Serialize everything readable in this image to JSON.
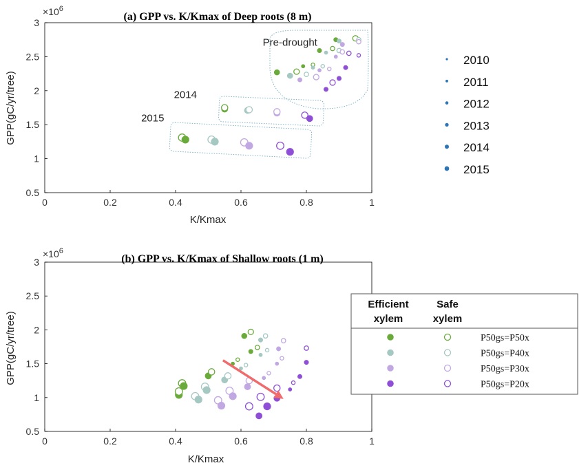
{
  "chart_data": [
    {
      "type": "scatter",
      "panel": "a",
      "title": "(a) GPP vs. K/Kmax of Deep roots (8 m)",
      "xlabel": "K/Kmax",
      "ylabel": "GPP(gC/yr/tree)",
      "exponent": "×10",
      "exponent_power": "6",
      "xlim": [
        0,
        1
      ],
      "ylim": [
        0.5,
        3
      ],
      "xticks": [
        0,
        0.2,
        0.4,
        0.6,
        0.8,
        1
      ],
      "xtick_labels": [
        "0",
        "0.2",
        "0.4",
        "0.6",
        "0.8",
        "1"
      ],
      "yticks": [
        0.5,
        1,
        1.5,
        2,
        2.5,
        3
      ],
      "ytick_labels": [
        "0.5",
        "1",
        "1.5",
        "2",
        "2.5",
        "3"
      ],
      "annotations": [
        {
          "text": "Pre-drought",
          "x": 0.75,
          "y": 2.66
        },
        {
          "text": "2014",
          "x": 0.43,
          "y": 1.89
        },
        {
          "text": "2015",
          "x": 0.33,
          "y": 1.55
        }
      ],
      "points": [
        {
          "x": 0.71,
          "y": 2.27,
          "c": "#6aaa3a",
          "f": true,
          "s": 3
        },
        {
          "x": 0.77,
          "y": 2.28,
          "c": "#6aaa3a",
          "f": false,
          "s": 3
        },
        {
          "x": 0.79,
          "y": 2.36,
          "c": "#6aaa3a",
          "f": true,
          "s": 1
        },
        {
          "x": 0.82,
          "y": 2.38,
          "c": "#6aaa3a",
          "f": false,
          "s": 1
        },
        {
          "x": 0.84,
          "y": 2.59,
          "c": "#6aaa3a",
          "f": true,
          "s": 2
        },
        {
          "x": 0.88,
          "y": 2.62,
          "c": "#6aaa3a",
          "f": false,
          "s": 2
        },
        {
          "x": 0.89,
          "y": 2.75,
          "c": "#6aaa3a",
          "f": true,
          "s": 2
        },
        {
          "x": 0.95,
          "y": 2.77,
          "c": "#6aaa3a",
          "f": false,
          "s": 3
        },
        {
          "x": 0.75,
          "y": 2.22,
          "c": "#a5c8c3",
          "f": true,
          "s": 3
        },
        {
          "x": 0.8,
          "y": 2.24,
          "c": "#a5c8c3",
          "f": false,
          "s": 2
        },
        {
          "x": 0.82,
          "y": 2.34,
          "c": "#a5c8c3",
          "f": true,
          "s": 1
        },
        {
          "x": 0.85,
          "y": 2.36,
          "c": "#a5c8c3",
          "f": false,
          "s": 1
        },
        {
          "x": 0.86,
          "y": 2.56,
          "c": "#a5c8c3",
          "f": true,
          "s": 1
        },
        {
          "x": 0.9,
          "y": 2.59,
          "c": "#a5c8c3",
          "f": false,
          "s": 2
        },
        {
          "x": 0.9,
          "y": 2.73,
          "c": "#a5c8c3",
          "f": true,
          "s": 2
        },
        {
          "x": 0.96,
          "y": 2.75,
          "c": "#a5c8c3",
          "f": false,
          "s": 2
        },
        {
          "x": 0.78,
          "y": 2.16,
          "c": "#c2a8e2",
          "f": true,
          "s": 2
        },
        {
          "x": 0.83,
          "y": 2.2,
          "c": "#c2a8e2",
          "f": false,
          "s": 3
        },
        {
          "x": 0.84,
          "y": 2.3,
          "c": "#c2a8e2",
          "f": true,
          "s": 1
        },
        {
          "x": 0.87,
          "y": 2.32,
          "c": "#c2a8e2",
          "f": false,
          "s": 1
        },
        {
          "x": 0.89,
          "y": 2.5,
          "c": "#c2a8e2",
          "f": true,
          "s": 1
        },
        {
          "x": 0.91,
          "y": 2.57,
          "c": "#c2a8e2",
          "f": false,
          "s": 2
        },
        {
          "x": 0.91,
          "y": 2.68,
          "c": "#c2a8e2",
          "f": true,
          "s": 2
        },
        {
          "x": 0.96,
          "y": 2.72,
          "c": "#c2a8e2",
          "f": false,
          "s": 2
        },
        {
          "x": 0.86,
          "y": 2.02,
          "c": "#8e4fd6",
          "f": true,
          "s": 2
        },
        {
          "x": 0.88,
          "y": 2.12,
          "c": "#8e4fd6",
          "f": false,
          "s": 3
        },
        {
          "x": 0.9,
          "y": 2.18,
          "c": "#8e4fd6",
          "f": true,
          "s": 2
        },
        {
          "x": 0.92,
          "y": 2.34,
          "c": "#8e4fd6",
          "f": true,
          "s": 2
        },
        {
          "x": 0.93,
          "y": 2.55,
          "c": "#8e4fd6",
          "f": false,
          "s": 2
        },
        {
          "x": 0.96,
          "y": 2.52,
          "c": "#8e4fd6",
          "f": false,
          "s": 1
        },
        {
          "x": 0.55,
          "y": 1.73,
          "c": "#6aaa3a",
          "f": true,
          "s": 4
        },
        {
          "x": 0.55,
          "y": 1.75,
          "c": "#6aaa3a",
          "f": false,
          "s": 4
        },
        {
          "x": 0.62,
          "y": 1.71,
          "c": "#a5c8c3",
          "f": true,
          "s": 4
        },
        {
          "x": 0.625,
          "y": 1.72,
          "c": "#a5c8c3",
          "f": false,
          "s": 4
        },
        {
          "x": 0.71,
          "y": 1.67,
          "c": "#c2a8e2",
          "f": true,
          "s": 4
        },
        {
          "x": 0.71,
          "y": 1.69,
          "c": "#c2a8e2",
          "f": false,
          "s": 4
        },
        {
          "x": 0.795,
          "y": 1.64,
          "c": "#8e4fd6",
          "f": false,
          "s": 4
        },
        {
          "x": 0.81,
          "y": 1.59,
          "c": "#8e4fd6",
          "f": true,
          "s": 4
        },
        {
          "x": 0.42,
          "y": 1.31,
          "c": "#6aaa3a",
          "f": false,
          "s": 5
        },
        {
          "x": 0.43,
          "y": 1.28,
          "c": "#6aaa3a",
          "f": true,
          "s": 5
        },
        {
          "x": 0.51,
          "y": 1.28,
          "c": "#a5c8c3",
          "f": false,
          "s": 5
        },
        {
          "x": 0.52,
          "y": 1.25,
          "c": "#a5c8c3",
          "f": true,
          "s": 5
        },
        {
          "x": 0.61,
          "y": 1.24,
          "c": "#c2a8e2",
          "f": false,
          "s": 5
        },
        {
          "x": 0.625,
          "y": 1.19,
          "c": "#c2a8e2",
          "f": true,
          "s": 5
        },
        {
          "x": 0.72,
          "y": 1.19,
          "c": "#8e4fd6",
          "f": false,
          "s": 5
        },
        {
          "x": 0.75,
          "y": 1.1,
          "c": "#8e4fd6",
          "f": true,
          "s": 5
        }
      ]
    },
    {
      "type": "scatter",
      "panel": "b",
      "title": "(b) GPP vs. K/Kmax of Shallow roots (1 m)",
      "xlabel": "K/Kmax",
      "ylabel": "GPP(gC/yr/tree)",
      "exponent": "×10",
      "exponent_power": "6",
      "xlim": [
        0,
        1
      ],
      "ylim": [
        0.5,
        3
      ],
      "xticks": [
        0,
        0.2,
        0.4,
        0.6,
        0.8,
        1
      ],
      "xtick_labels": [
        "0",
        "0.2",
        "0.4",
        "0.6",
        "0.8",
        "1"
      ],
      "yticks": [
        0.5,
        1,
        1.5,
        2,
        2.5,
        3
      ],
      "ytick_labels": [
        "0.5",
        "1",
        "1.5",
        "2",
        "2.5",
        "3"
      ],
      "arrow": {
        "x1": 0.545,
        "y1": 1.55,
        "x2": 0.73,
        "y2": 0.98,
        "color": "#f06b6b"
      },
      "points": [
        {
          "x": 0.41,
          "y": 1.04,
          "c": "#6aaa3a",
          "f": true,
          "s": 5
        },
        {
          "x": 0.41,
          "y": 1.09,
          "c": "#6aaa3a",
          "f": false,
          "s": 5
        },
        {
          "x": 0.42,
          "y": 1.21,
          "c": "#6aaa3a",
          "f": false,
          "s": 5
        },
        {
          "x": 0.425,
          "y": 1.17,
          "c": "#6aaa3a",
          "f": true,
          "s": 5
        },
        {
          "x": 0.5,
          "y": 1.32,
          "c": "#6aaa3a",
          "f": true,
          "s": 4
        },
        {
          "x": 0.51,
          "y": 1.38,
          "c": "#6aaa3a",
          "f": false,
          "s": 4
        },
        {
          "x": 0.575,
          "y": 1.5,
          "c": "#6aaa3a",
          "f": true,
          "s": 1
        },
        {
          "x": 0.59,
          "y": 1.56,
          "c": "#6aaa3a",
          "f": false,
          "s": 1
        },
        {
          "x": 0.63,
          "y": 1.68,
          "c": "#6aaa3a",
          "f": true,
          "s": 2
        },
        {
          "x": 0.65,
          "y": 1.74,
          "c": "#6aaa3a",
          "f": false,
          "s": 2
        },
        {
          "x": 0.61,
          "y": 1.91,
          "c": "#6aaa3a",
          "f": true,
          "s": 3
        },
        {
          "x": 0.63,
          "y": 1.97,
          "c": "#6aaa3a",
          "f": false,
          "s": 3
        },
        {
          "x": 0.46,
          "y": 1.02,
          "c": "#a5c8c3",
          "f": false,
          "s": 5
        },
        {
          "x": 0.47,
          "y": 0.97,
          "c": "#a5c8c3",
          "f": true,
          "s": 5
        },
        {
          "x": 0.49,
          "y": 1.16,
          "c": "#a5c8c3",
          "f": false,
          "s": 5
        },
        {
          "x": 0.495,
          "y": 1.11,
          "c": "#a5c8c3",
          "f": true,
          "s": 5
        },
        {
          "x": 0.55,
          "y": 1.26,
          "c": "#a5c8c3",
          "f": true,
          "s": 4
        },
        {
          "x": 0.56,
          "y": 1.32,
          "c": "#a5c8c3",
          "f": false,
          "s": 4
        },
        {
          "x": 0.6,
          "y": 1.43,
          "c": "#a5c8c3",
          "f": true,
          "s": 1
        },
        {
          "x": 0.615,
          "y": 1.48,
          "c": "#a5c8c3",
          "f": false,
          "s": 1
        },
        {
          "x": 0.66,
          "y": 1.63,
          "c": "#a5c8c3",
          "f": true,
          "s": 1
        },
        {
          "x": 0.68,
          "y": 1.7,
          "c": "#a5c8c3",
          "f": false,
          "s": 1
        },
        {
          "x": 0.66,
          "y": 1.85,
          "c": "#a5c8c3",
          "f": true,
          "s": 2
        },
        {
          "x": 0.675,
          "y": 1.91,
          "c": "#a5c8c3",
          "f": false,
          "s": 2
        },
        {
          "x": 0.53,
          "y": 0.96,
          "c": "#c2a8e2",
          "f": false,
          "s": 5
        },
        {
          "x": 0.54,
          "y": 0.88,
          "c": "#c2a8e2",
          "f": true,
          "s": 5
        },
        {
          "x": 0.565,
          "y": 1.1,
          "c": "#c2a8e2",
          "f": false,
          "s": 5
        },
        {
          "x": 0.575,
          "y": 1.02,
          "c": "#c2a8e2",
          "f": true,
          "s": 5
        },
        {
          "x": 0.62,
          "y": 1.16,
          "c": "#c2a8e2",
          "f": true,
          "s": 4
        },
        {
          "x": 0.625,
          "y": 1.25,
          "c": "#c2a8e2",
          "f": false,
          "s": 4
        },
        {
          "x": 0.67,
          "y": 1.29,
          "c": "#c2a8e2",
          "f": true,
          "s": 1
        },
        {
          "x": 0.685,
          "y": 1.36,
          "c": "#c2a8e2",
          "f": false,
          "s": 1
        },
        {
          "x": 0.71,
          "y": 1.5,
          "c": "#c2a8e2",
          "f": true,
          "s": 1
        },
        {
          "x": 0.725,
          "y": 1.58,
          "c": "#c2a8e2",
          "f": false,
          "s": 1
        },
        {
          "x": 0.715,
          "y": 1.72,
          "c": "#c2a8e2",
          "f": true,
          "s": 2
        },
        {
          "x": 0.73,
          "y": 1.84,
          "c": "#c2a8e2",
          "f": false,
          "s": 2
        },
        {
          "x": 0.625,
          "y": 0.87,
          "c": "#8e4fd6",
          "f": false,
          "s": 5
        },
        {
          "x": 0.655,
          "y": 0.73,
          "c": "#8e4fd6",
          "f": true,
          "s": 4
        },
        {
          "x": 0.66,
          "y": 1.01,
          "c": "#8e4fd6",
          "f": false,
          "s": 5
        },
        {
          "x": 0.68,
          "y": 0.87,
          "c": "#8e4fd6",
          "f": true,
          "s": 5
        },
        {
          "x": 0.71,
          "y": 0.99,
          "c": "#8e4fd6",
          "f": true,
          "s": 4
        },
        {
          "x": 0.71,
          "y": 1.14,
          "c": "#8e4fd6",
          "f": false,
          "s": 4
        },
        {
          "x": 0.75,
          "y": 1.12,
          "c": "#8e4fd6",
          "f": true,
          "s": 1
        },
        {
          "x": 0.76,
          "y": 1.22,
          "c": "#8e4fd6",
          "f": false,
          "s": 1
        },
        {
          "x": 0.78,
          "y": 1.31,
          "c": "#8e4fd6",
          "f": true,
          "s": 2
        },
        {
          "x": 0.8,
          "y": 1.52,
          "c": "#8e4fd6",
          "f": true,
          "s": 2
        },
        {
          "x": 0.8,
          "y": 1.73,
          "c": "#8e4fd6",
          "f": false,
          "s": 2
        }
      ]
    }
  ],
  "year_legend": {
    "items": [
      "2010",
      "2011",
      "2012",
      "2013",
      "2014",
      "2015"
    ],
    "marker_color": "#2e75b6"
  },
  "scheme_legend": {
    "col_headers": [
      [
        "Efficient",
        "xylem"
      ],
      [
        "Safe",
        "xylem"
      ]
    ],
    "rows": [
      {
        "label": "P50gs=P50x",
        "color": "#6aaa3a"
      },
      {
        "label": "P50gs=P40x",
        "color": "#a5c8c3"
      },
      {
        "label": "P50gs=P30x",
        "color": "#c2a8e2"
      },
      {
        "label": "P50gs=P20x",
        "color": "#8e4fd6"
      }
    ]
  }
}
